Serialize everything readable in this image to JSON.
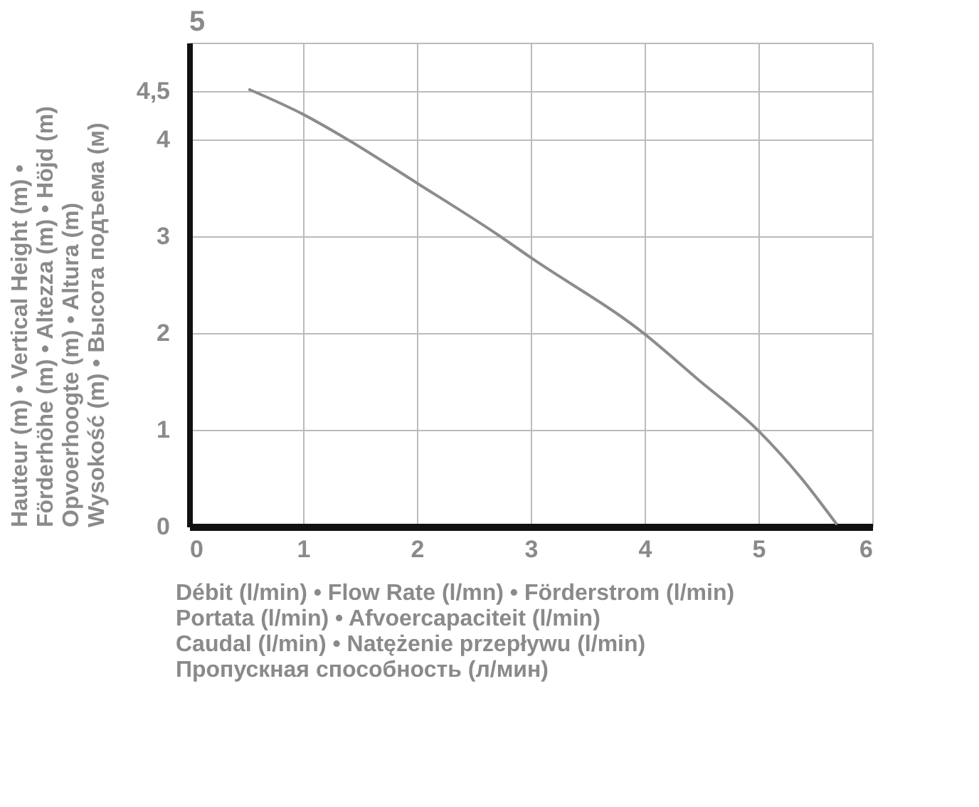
{
  "chart_data": {
    "type": "line",
    "title": "5",
    "xlabel": "Débit (l/min) • Flow Rate (l/mn) • Förderstrom (l/min)\nPortata (l/min) • Afvoercapaciteit (l/min)\nCaudal (l/min) • Natężenie przepływu (l/min)\nПропускная способность (л/мин)",
    "ylabel": "Hauteur (m) • Vertical Height (m) •\nFörderhöhe (m) • Altezza (m) • Höjd (m)\nOpvoerhoogte (m) • Altura (m)\nWysokość (m) • Высота подъема (м)",
    "x": [
      0.52,
      1,
      1.39,
      2,
      2.73,
      3,
      4,
      4.46,
      5,
      5.37,
      5.69
    ],
    "series": [
      {
        "color": "#8c8c8c",
        "values": [
          4.52,
          4.26,
          4.0,
          3.55,
          3.0,
          2.78,
          1.99,
          1.53,
          0.99,
          0.51,
          0.02
        ]
      }
    ],
    "xlim": [
      0,
      6
    ],
    "xticks": [
      0,
      1,
      2,
      3,
      4,
      5,
      6
    ],
    "ylim": [
      0,
      5
    ],
    "yticks": [
      0,
      1,
      2,
      3,
      4,
      {
        "value": 4.5,
        "label": "4,5"
      },
      {
        "value": 5,
        "label": null
      }
    ],
    "grid": true,
    "marker": "none",
    "line_style": "solid"
  }
}
